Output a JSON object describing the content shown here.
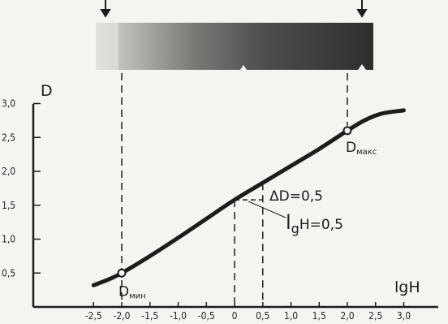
{
  "chart_data": {
    "type": "line",
    "xlabel": "lgH",
    "ylabel": "D",
    "xlim": [
      -2.8,
      3.0
    ],
    "ylim": [
      0,
      3.0
    ],
    "x_ticks": [
      "-2,5",
      "-2,0",
      "-1,5",
      "-1,0",
      "-0,5",
      "0",
      "0,5",
      "1,0",
      "1,5",
      "2,0",
      "2,5",
      "3,0"
    ],
    "y_ticks": [
      "0,5",
      "1,0",
      "1,5",
      "2,0",
      "2,5",
      "3,0"
    ],
    "grid": false,
    "series": [
      {
        "x": [
          -2.5,
          -2.25,
          -2.0,
          -1.5,
          -1.0,
          -0.5,
          0.0,
          0.5,
          1.0,
          1.5,
          2.0,
          2.3,
          2.6,
          3.0
        ],
        "y": [
          0.32,
          0.4,
          0.5,
          0.75,
          1.02,
          1.3,
          1.58,
          1.83,
          2.08,
          2.33,
          2.6,
          2.75,
          2.85,
          2.9
        ]
      }
    ],
    "points": [
      {
        "name": "D",
        "sub": "мин",
        "x": -2.0,
        "y": 0.5
      },
      {
        "name": "D",
        "sub": "макс",
        "x": 2.0,
        "y": 2.6
      }
    ],
    "annotations": {
      "delta_d": "ΔD=0,5",
      "delta_lgh": "lgH=0,5",
      "delta_lgh_main": "l",
      "delta_lgh_sub": "g",
      "delta_lgh_rest": "H=0,5"
    },
    "wedge": {
      "from_x": -2.0,
      "to_x": 2.0
    }
  }
}
